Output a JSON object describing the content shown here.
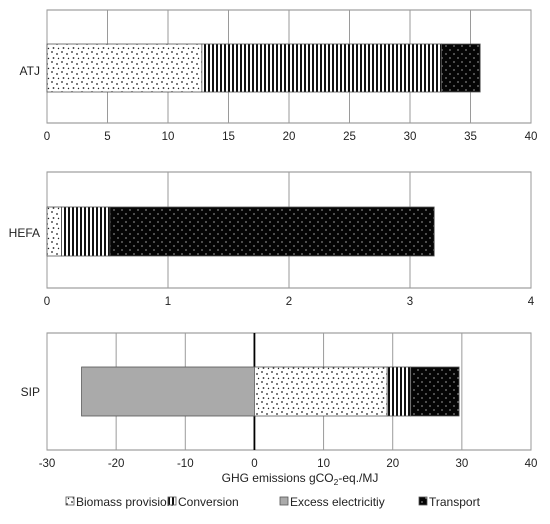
{
  "chart_data": [
    {
      "type": "bar",
      "orientation": "horizontal",
      "stacked": true,
      "categories": [
        "ATJ"
      ],
      "series": [
        {
          "name": "Biomass provision",
          "values": [
            12.8
          ],
          "pattern": "dots-sparse",
          "color": "#ffffff"
        },
        {
          "name": "Conversion",
          "values": [
            19.8
          ],
          "pattern": "vertical-stripes",
          "color": "#ffffff"
        },
        {
          "name": "Transport",
          "values": [
            3.2
          ],
          "pattern": "dots-dense",
          "color": "#000000"
        }
      ],
      "xlim": [
        0,
        40
      ],
      "xticks": [
        "0",
        "5",
        "10",
        "15",
        "20",
        "25",
        "30",
        "35",
        "40"
      ],
      "xgrid": true
    },
    {
      "type": "bar",
      "orientation": "horizontal",
      "stacked": true,
      "categories": [
        "HEFA"
      ],
      "series": [
        {
          "name": "Biomass provision",
          "values": [
            0.12
          ],
          "pattern": "dots-sparse",
          "color": "#ffffff"
        },
        {
          "name": "Conversion",
          "values": [
            0.4
          ],
          "pattern": "vertical-stripes",
          "color": "#ffffff"
        },
        {
          "name": "Transport",
          "values": [
            2.68
          ],
          "pattern": "dots-dense",
          "color": "#000000"
        }
      ],
      "xlim": [
        0,
        4
      ],
      "xticks": [
        "0",
        "1",
        "2",
        "3",
        "4"
      ],
      "xgrid": true
    },
    {
      "type": "bar",
      "orientation": "horizontal",
      "stacked": true,
      "categories": [
        "SIP"
      ],
      "series": [
        {
          "name": "Excess electricitiy",
          "values": [
            -25
          ],
          "pattern": "solid",
          "color": "#aaaaaa"
        },
        {
          "name": "Biomass provision",
          "values": [
            19.2
          ],
          "pattern": "dots-sparse",
          "color": "#ffffff"
        },
        {
          "name": "Conversion",
          "values": [
            3.4
          ],
          "pattern": "vertical-stripes",
          "color": "#ffffff"
        },
        {
          "name": "Transport",
          "values": [
            7.0
          ],
          "pattern": "dots-dense",
          "color": "#000000"
        }
      ],
      "xlim": [
        -30,
        40
      ],
      "xticks": [
        "-30",
        "-20",
        "-10",
        "0",
        "10",
        "20",
        "30",
        "40"
      ],
      "xgrid": true
    }
  ],
  "xlabel": {
    "main": "GHG emissions gCO",
    "sub": "2",
    "rest": "-eq./MJ"
  },
  "legend": [
    {
      "label": "Biomass provision",
      "pattern": "dots-sparse"
    },
    {
      "label": "Conversion",
      "pattern": "vertical-stripes"
    },
    {
      "label": "Excess electricitiy",
      "pattern": "solid"
    },
    {
      "label": "Transport",
      "pattern": "dots-dense"
    }
  ]
}
